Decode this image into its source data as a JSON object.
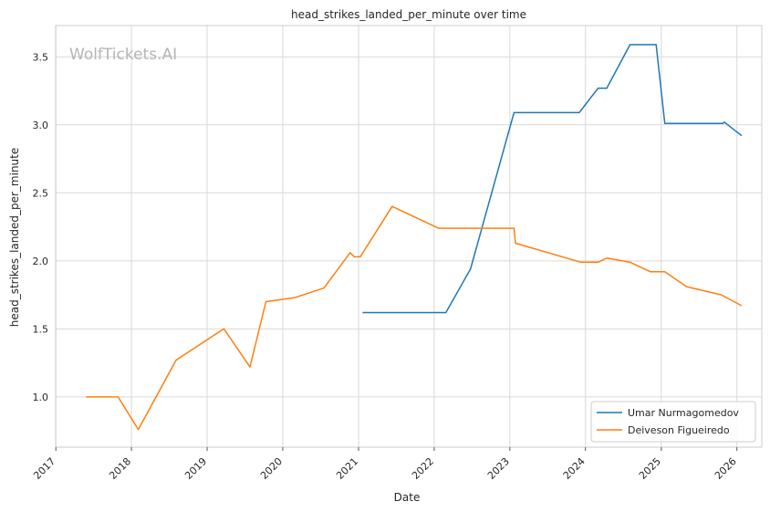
{
  "chart_data": {
    "type": "line",
    "title": "head_strikes_landed_per_minute over time",
    "xlabel": "Date",
    "ylabel": "head_strikes_landed_per_minute",
    "watermark": "WolfTickets.AI",
    "x_tick_labels": [
      "2017",
      "2018",
      "2019",
      "2020",
      "2021",
      "2022",
      "2023",
      "2024",
      "2025",
      "2026"
    ],
    "y_tick_labels": [
      "1.0",
      "1.5",
      "2.0",
      "2.5",
      "3.0",
      "3.5"
    ],
    "y_ticks": [
      1.0,
      1.5,
      2.0,
      2.5,
      3.0,
      3.5
    ],
    "xlim": [
      "2016-12-31",
      "2026-05-01"
    ],
    "ylim": [
      0.63,
      3.73
    ],
    "grid": true,
    "legend_position": "bottom-right",
    "series": [
      {
        "name": "Umar Nurmagomedov",
        "color": "#1f77b4",
        "points": [
          [
            "2021-01-20",
            1.62
          ],
          [
            "2022-02-26",
            1.62
          ],
          [
            "2022-06-25",
            1.94
          ],
          [
            "2023-01-21",
            3.09
          ],
          [
            "2023-12-02",
            3.09
          ],
          [
            "2024-03-02",
            3.27
          ],
          [
            "2024-04-13",
            3.27
          ],
          [
            "2024-08-03",
            3.59
          ],
          [
            "2024-12-07",
            3.59
          ],
          [
            "2025-01-18",
            3.01
          ],
          [
            "2025-10-25",
            3.01
          ],
          [
            "2025-11-01",
            3.02
          ],
          [
            "2026-01-24",
            2.92
          ]
        ]
      },
      {
        "name": "Deiveson Figueiredo",
        "color": "#ff7f0e",
        "points": [
          [
            "2017-05-27",
            1.0
          ],
          [
            "2017-10-28",
            1.0
          ],
          [
            "2018-02-03",
            0.76
          ],
          [
            "2018-08-04",
            1.27
          ],
          [
            "2019-03-23",
            1.5
          ],
          [
            "2019-07-27",
            1.22
          ],
          [
            "2019-10-12",
            1.7
          ],
          [
            "2020-02-29",
            1.73
          ],
          [
            "2020-07-18",
            1.8
          ],
          [
            "2020-11-21",
            2.06
          ],
          [
            "2020-12-12",
            2.03
          ],
          [
            "2021-01-09",
            2.03
          ],
          [
            "2021-06-12",
            2.4
          ],
          [
            "2022-01-22",
            2.24
          ],
          [
            "2023-01-21",
            2.24
          ],
          [
            "2023-01-28",
            2.13
          ],
          [
            "2023-12-09",
            1.99
          ],
          [
            "2024-03-02",
            1.99
          ],
          [
            "2024-04-13",
            2.02
          ],
          [
            "2024-08-03",
            1.99
          ],
          [
            "2024-11-09",
            1.92
          ],
          [
            "2025-01-18",
            1.92
          ],
          [
            "2025-05-03",
            1.81
          ],
          [
            "2025-10-18",
            1.75
          ],
          [
            "2026-01-24",
            1.67
          ]
        ]
      }
    ]
  }
}
